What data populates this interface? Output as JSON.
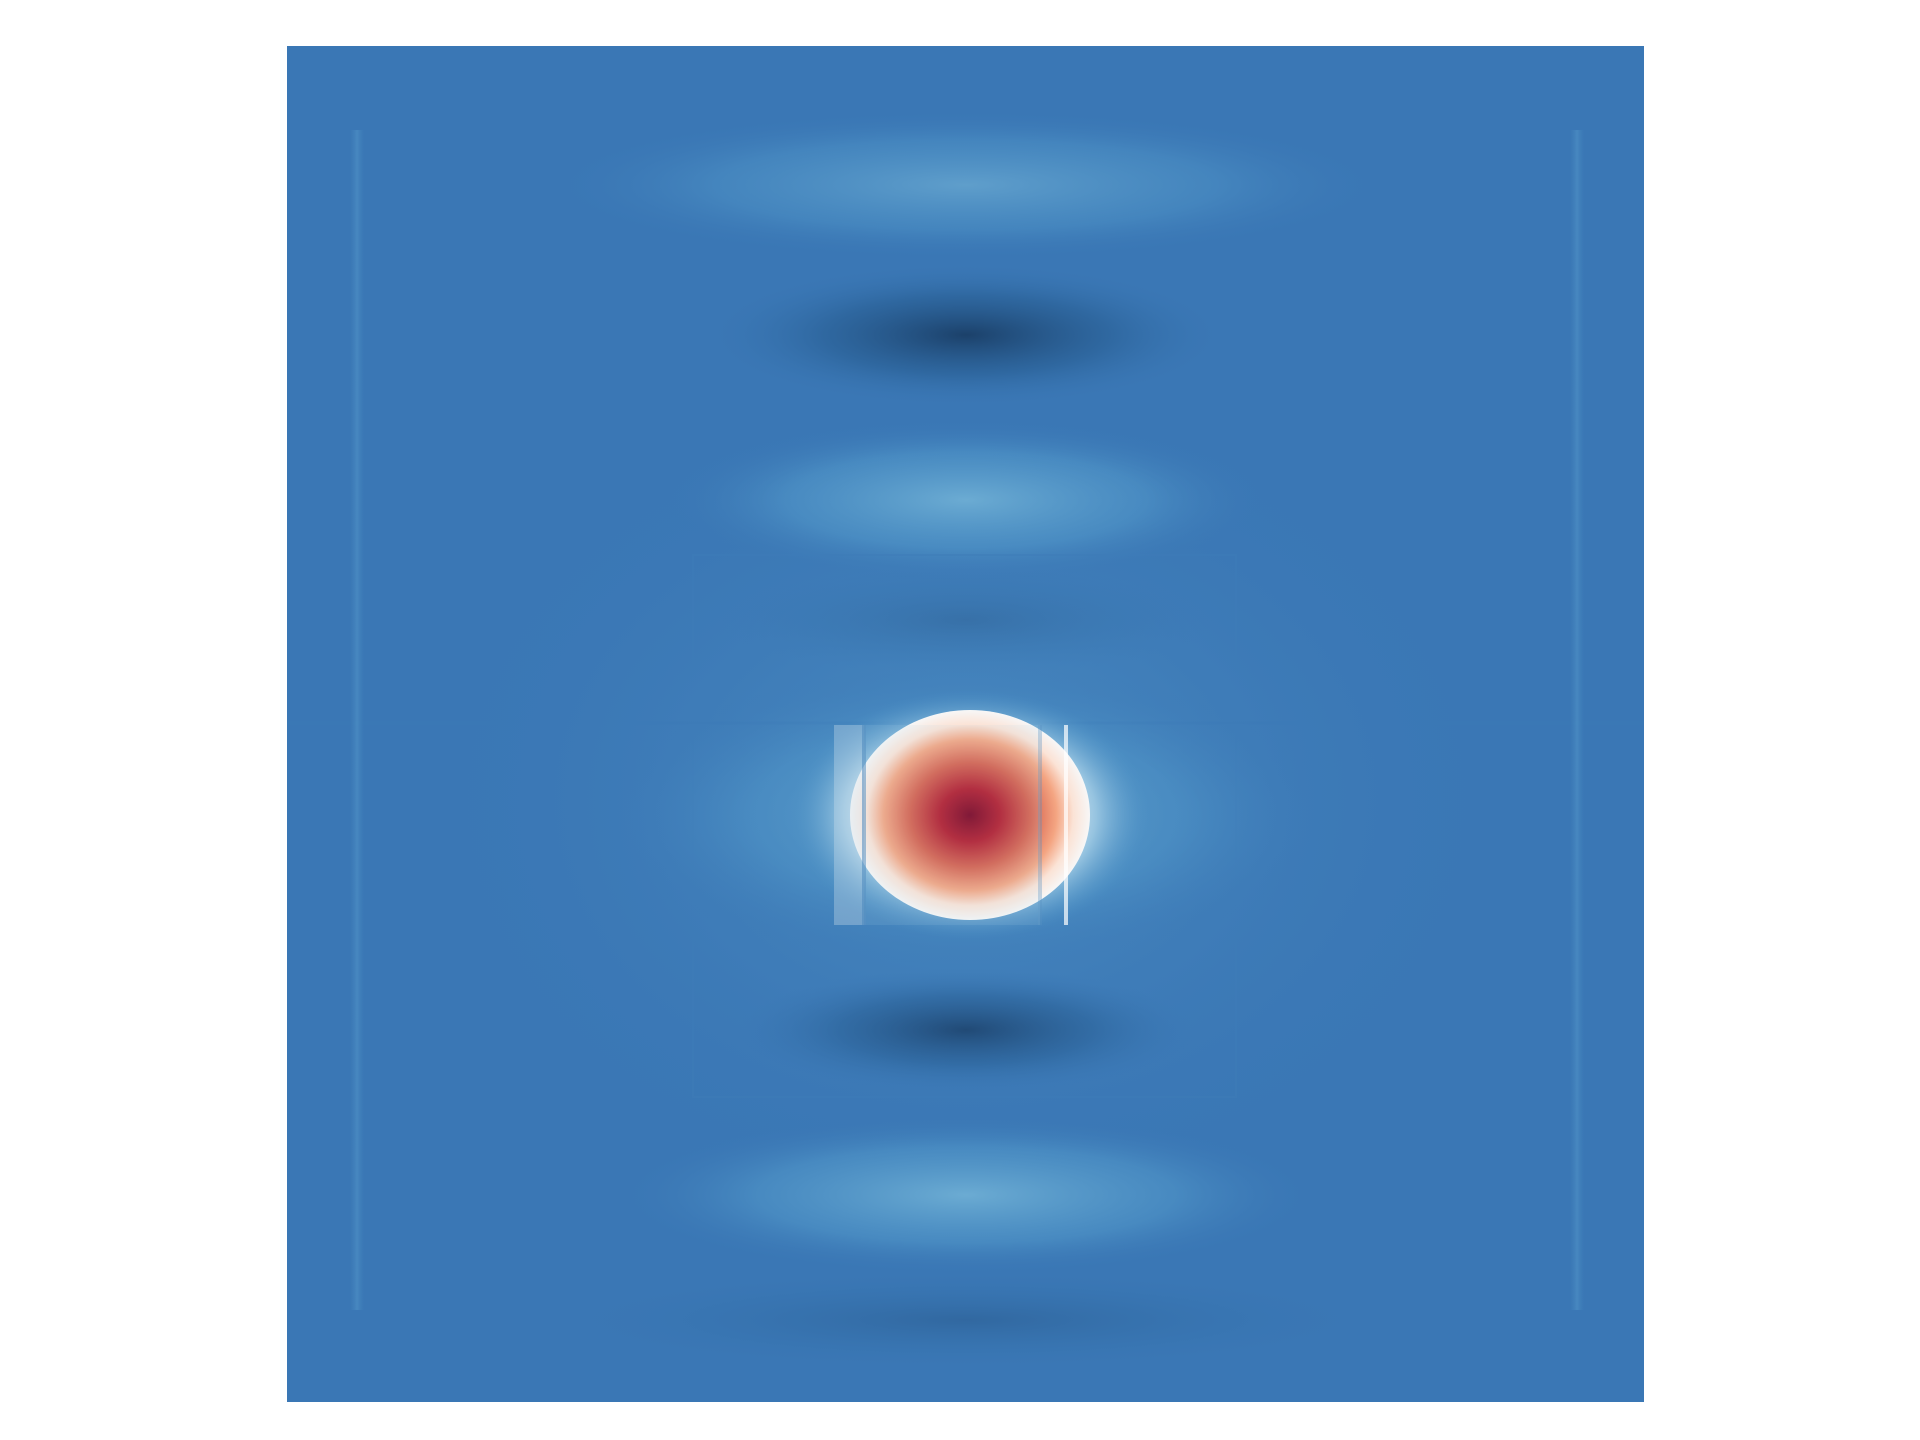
{
  "colors": {
    "background": "#ffffff",
    "field_base": "#3a77b5",
    "field_mid": "#3a73b2",
    "light_blue": "#6aaad2",
    "dark_blue": "#1d4673",
    "white": "#f7f7f7",
    "light_red": "#f2a98a",
    "red": "#c4333a",
    "dark_red": "#8a0a22"
  },
  "colormap": "RdBu_r"
}
